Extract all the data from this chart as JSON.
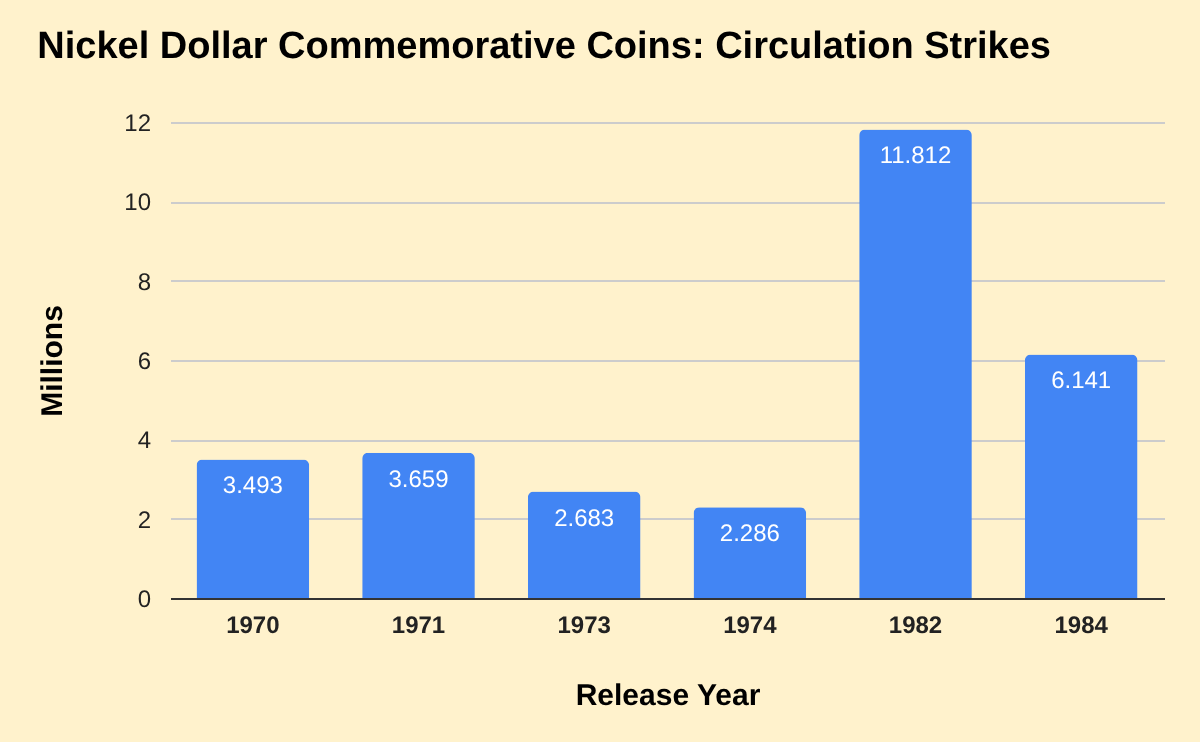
{
  "chart_data": {
    "type": "bar",
    "title": "Nickel Dollar Commemorative Coins: Circulation Strikes",
    "xlabel": "Release Year",
    "ylabel": "Millions",
    "categories": [
      "1970",
      "1971",
      "1973",
      "1974",
      "1982",
      "1984"
    ],
    "values": [
      3.493,
      3.659,
      2.683,
      2.286,
      11.812,
      6.141
    ],
    "color": "#4285f4",
    "ylim": [
      0,
      12
    ],
    "yticks": [
      0,
      2,
      4,
      6,
      8,
      10,
      12
    ],
    "grid": "y",
    "data_labels": true
  }
}
